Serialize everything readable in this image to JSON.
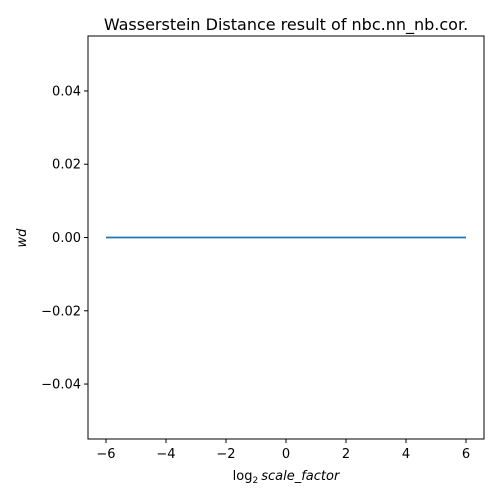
{
  "chart_data": {
    "type": "line",
    "title": "Wasserstein Distance result of nbc.nn_nb.cor.",
    "xlabel_prefix": "log",
    "xlabel_sub": "2",
    "xlabel_var": "scale_factor",
    "ylabel": "wd",
    "xlim": [
      -6.6,
      6.6
    ],
    "ylim": [
      -0.055,
      0.055
    ],
    "xticks": [
      -6,
      -4,
      -2,
      0,
      2,
      4,
      6
    ],
    "xtick_labels": [
      "−6",
      "−4",
      "−2",
      "0",
      "2",
      "4",
      "6"
    ],
    "yticks": [
      -0.04,
      -0.02,
      0.0,
      0.02,
      0.04
    ],
    "ytick_labels": [
      "−0.04",
      "−0.02",
      "0.00",
      "0.02",
      "0.04"
    ],
    "series": [
      {
        "color": "#1f77b4",
        "x": [
          -6,
          -5,
          -4,
          -3,
          -2,
          -1,
          0,
          1,
          2,
          3,
          4,
          5,
          6
        ],
        "y": [
          0,
          0,
          0,
          0,
          0,
          0,
          0,
          0,
          0,
          0,
          0,
          0,
          0
        ]
      }
    ],
    "grid": false,
    "legend": "none"
  }
}
